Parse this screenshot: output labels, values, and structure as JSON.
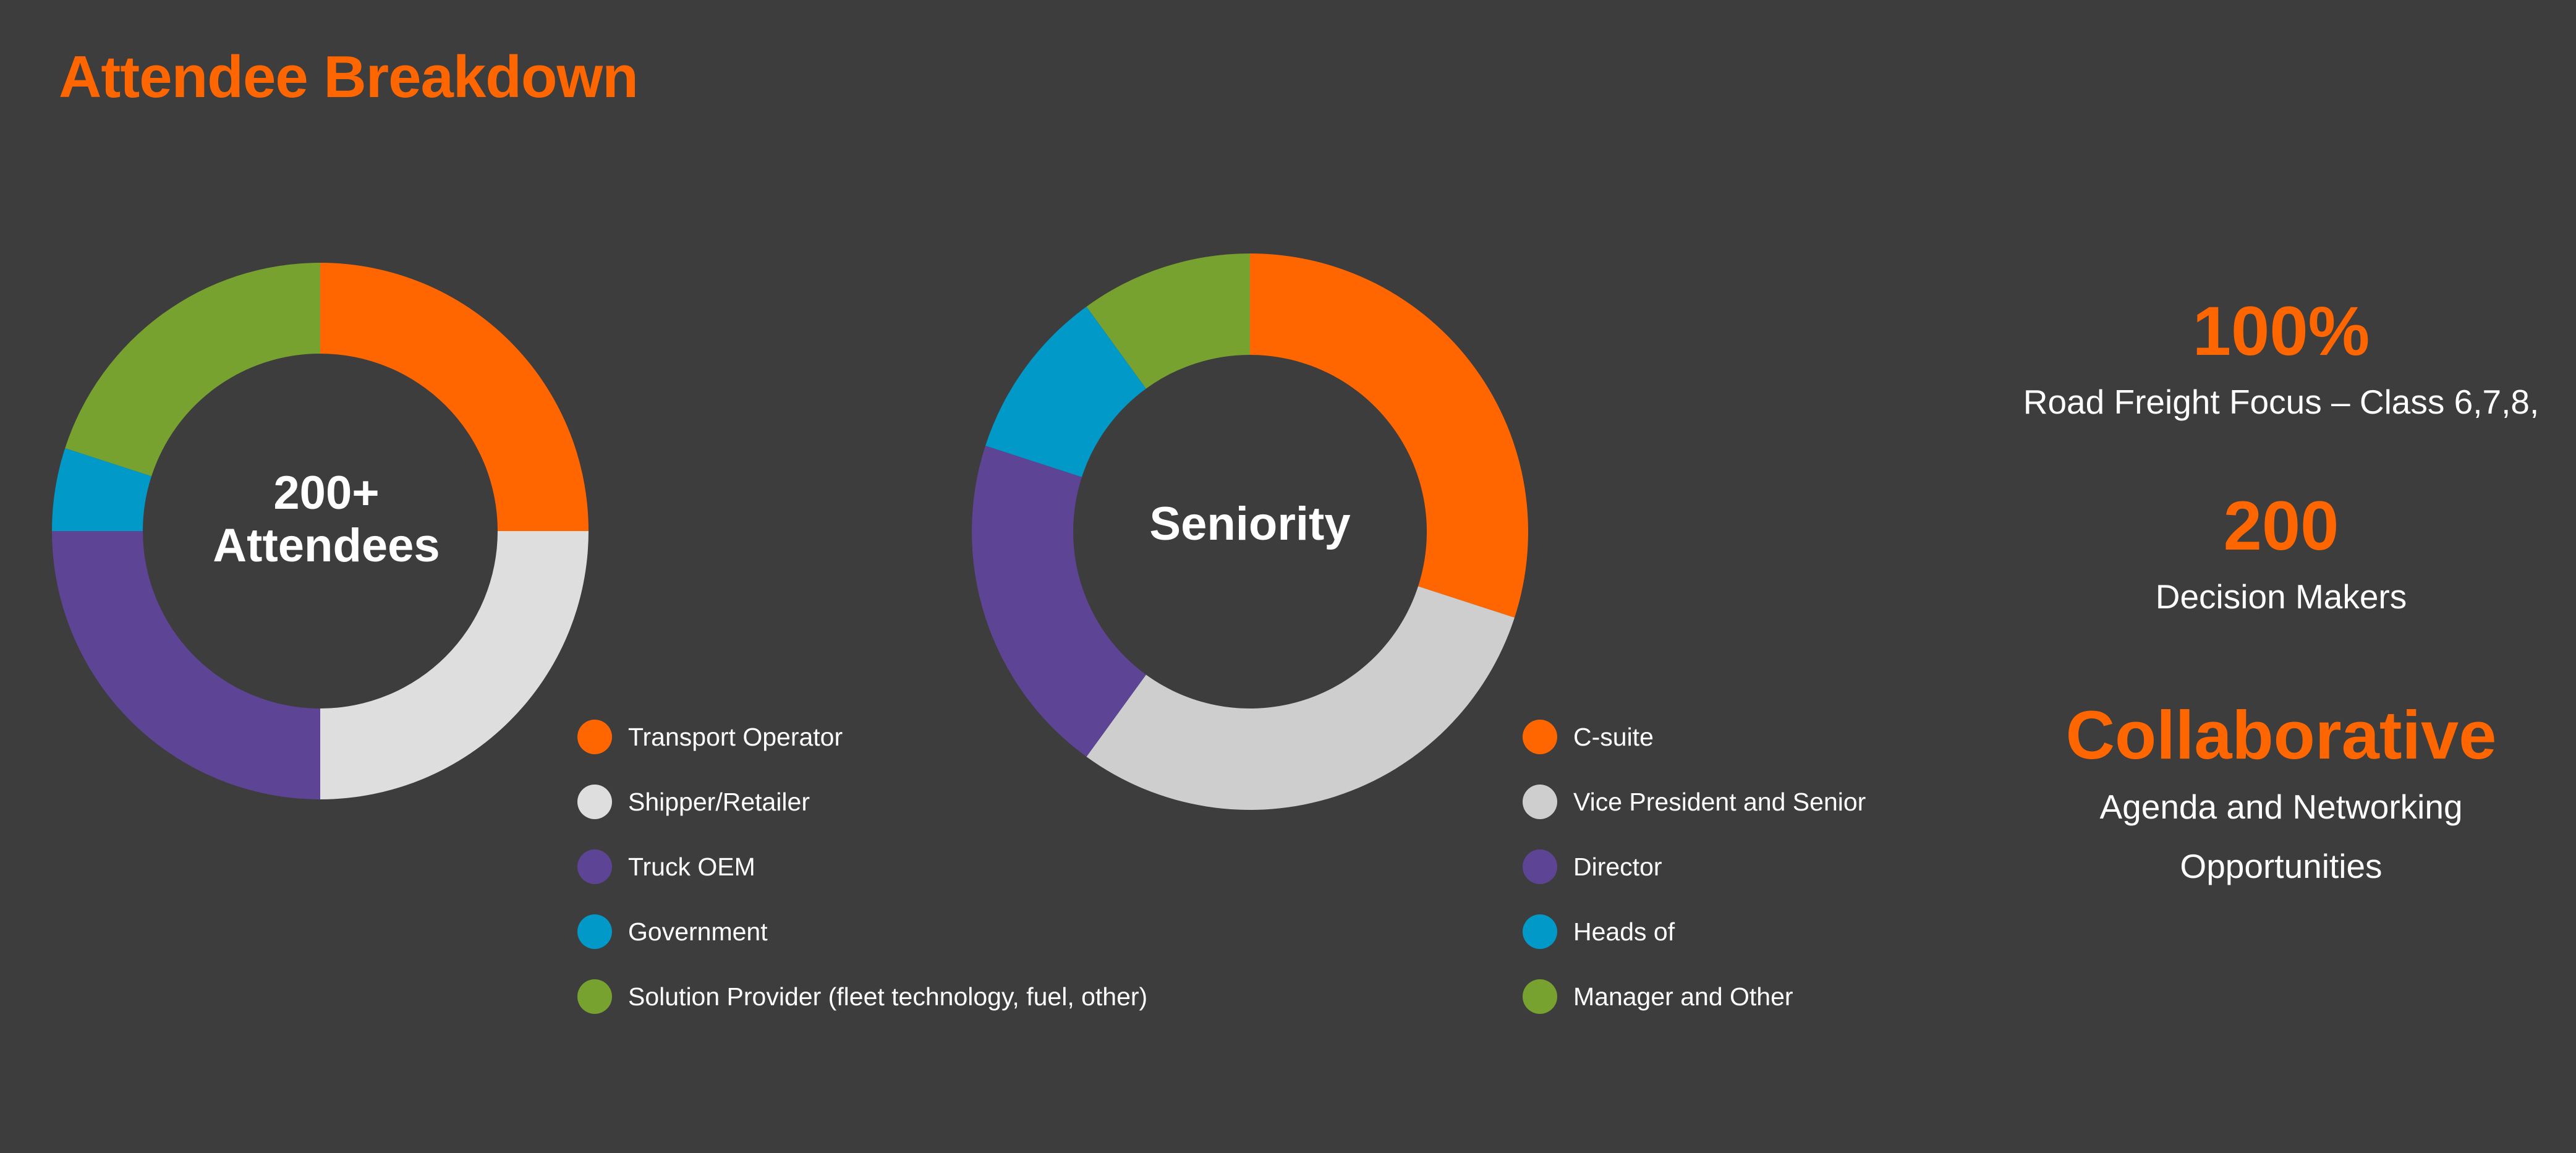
{
  "title": "Attendee Breakdown",
  "colors": {
    "accent": "#ff6600",
    "background": "#3d3d3d"
  },
  "chart_data": [
    {
      "type": "pie",
      "center_label": [
        "200+",
        "Attendees"
      ],
      "categories": [
        "Transport Operator",
        "Shipper/Retailer",
        "Truck OEM",
        "Government",
        "Solution Provider (fleet technology, fuel, other)"
      ],
      "values": [
        25,
        25,
        25,
        5,
        20
      ],
      "colors": [
        "#ff6600",
        "#dedede",
        "#5e4494",
        "#0099c8",
        "#78a22f"
      ],
      "legend_position": "bottom-right"
    },
    {
      "type": "pie",
      "center_label": [
        "Seniority"
      ],
      "categories": [
        "C-suite",
        "Vice President and Senior",
        "Director",
        "Heads of",
        "Manager and Other"
      ],
      "values": [
        30,
        30,
        20,
        10,
        10
      ],
      "colors": [
        "#ff6600",
        "#cecece",
        "#5e4494",
        "#0099c8",
        "#78a22f"
      ],
      "legend_position": "bottom-right"
    }
  ],
  "stats": [
    {
      "value": "100%",
      "text": [
        "Road Freight Focus – Class 6,7,8,"
      ]
    },
    {
      "value": "200",
      "text": [
        "Decision Makers"
      ]
    },
    {
      "value": "Collaborative",
      "text": [
        "Agenda and Networking",
        "Opportunities"
      ]
    }
  ]
}
